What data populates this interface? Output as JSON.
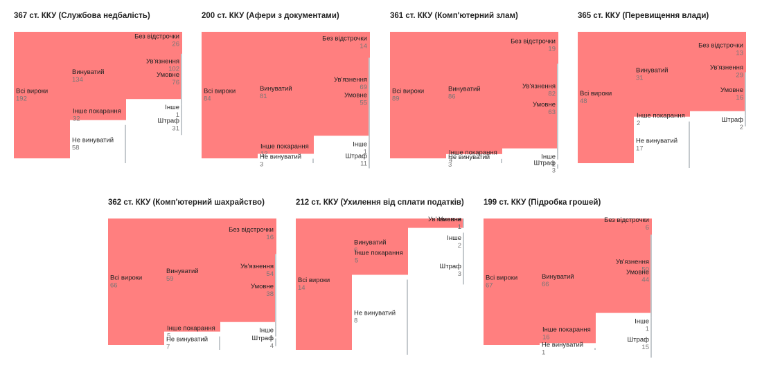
{
  "colors": {
    "red": "#ff7f7f",
    "grey": "#e2e6ea",
    "node_grey": "#c4c9cd",
    "link_red": "#ff7f7f"
  },
  "chart_data": [
    {
      "type": "sankey",
      "title": "367 ст. ККУ (Службова недбалість)",
      "nodes": [
        {
          "id": "all",
          "label": "Всі вироки",
          "value": 192
        },
        {
          "id": "guilty",
          "label": "Винуватий",
          "value": 134
        },
        {
          "id": "notguilty",
          "label": "Не винуватий",
          "value": 58
        },
        {
          "id": "prison",
          "label": "Ув'язнення",
          "value": 102
        },
        {
          "id": "otherpun",
          "label": "Інше покарання",
          "value": 32
        },
        {
          "id": "real",
          "label": "Без відстрочки",
          "value": 26
        },
        {
          "id": "cond",
          "label": "Умовне",
          "value": 76
        },
        {
          "id": "other",
          "label": "Інше",
          "value": 1
        },
        {
          "id": "fine",
          "label": "Штраф",
          "value": 31
        }
      ],
      "links": [
        {
          "source": "all",
          "target": "guilty",
          "value": 134
        },
        {
          "source": "all",
          "target": "notguilty",
          "value": 58
        },
        {
          "source": "guilty",
          "target": "prison",
          "value": 102
        },
        {
          "source": "guilty",
          "target": "otherpun",
          "value": 32
        },
        {
          "source": "prison",
          "target": "real",
          "value": 26
        },
        {
          "source": "prison",
          "target": "cond",
          "value": 76
        },
        {
          "source": "otherpun",
          "target": "other",
          "value": 1
        },
        {
          "source": "otherpun",
          "target": "fine",
          "value": 31
        }
      ]
    },
    {
      "type": "sankey",
      "title": "200 ст. ККУ (Афери з документами)",
      "nodes": [
        {
          "id": "all",
          "label": "Всі вироки",
          "value": 84
        },
        {
          "id": "guilty",
          "label": "Винуватий",
          "value": 81
        },
        {
          "id": "notguilty",
          "label": "Не винуватий",
          "value": 3
        },
        {
          "id": "prison",
          "label": "Ув'язнення",
          "value": 69
        },
        {
          "id": "otherpun",
          "label": "Інше покарання",
          "value": 12
        },
        {
          "id": "real",
          "label": "Без відстрочки",
          "value": 14
        },
        {
          "id": "cond",
          "label": "Умовне",
          "value": 55
        },
        {
          "id": "other",
          "label": "Інше",
          "value": 1
        },
        {
          "id": "fine",
          "label": "Штраф",
          "value": 11
        }
      ],
      "links": [
        {
          "source": "all",
          "target": "guilty",
          "value": 81
        },
        {
          "source": "all",
          "target": "notguilty",
          "value": 3
        },
        {
          "source": "guilty",
          "target": "prison",
          "value": 69
        },
        {
          "source": "guilty",
          "target": "otherpun",
          "value": 12
        },
        {
          "source": "prison",
          "target": "real",
          "value": 14
        },
        {
          "source": "prison",
          "target": "cond",
          "value": 55
        },
        {
          "source": "otherpun",
          "target": "other",
          "value": 1
        },
        {
          "source": "otherpun",
          "target": "fine",
          "value": 11
        }
      ]
    },
    {
      "type": "sankey",
      "title": "361 ст. ККУ (Комп'ютерний злам)",
      "nodes": [
        {
          "id": "all",
          "label": "Всі вироки",
          "value": 89
        },
        {
          "id": "guilty",
          "label": "Винуватий",
          "value": 86
        },
        {
          "id": "notguilty",
          "label": "Не винуватий",
          "value": 3
        },
        {
          "id": "prison",
          "label": "Ув'язнення",
          "value": 82
        },
        {
          "id": "otherpun",
          "label": "Інше покарання",
          "value": 4
        },
        {
          "id": "real",
          "label": "Без відстрочки",
          "value": 19
        },
        {
          "id": "cond",
          "label": "Умовне",
          "value": 63
        },
        {
          "id": "other",
          "label": "Інше",
          "value": 1
        },
        {
          "id": "fine",
          "label": "Штраф",
          "value": 3
        }
      ],
      "links": [
        {
          "source": "all",
          "target": "guilty",
          "value": 86
        },
        {
          "source": "all",
          "target": "notguilty",
          "value": 3
        },
        {
          "source": "guilty",
          "target": "prison",
          "value": 82
        },
        {
          "source": "guilty",
          "target": "otherpun",
          "value": 4
        },
        {
          "source": "prison",
          "target": "real",
          "value": 19
        },
        {
          "source": "prison",
          "target": "cond",
          "value": 63
        },
        {
          "source": "otherpun",
          "target": "other",
          "value": 1
        },
        {
          "source": "otherpun",
          "target": "fine",
          "value": 3
        }
      ]
    },
    {
      "type": "sankey",
      "title": "365 ст. ККУ (Перевищення влади)",
      "nodes": [
        {
          "id": "all",
          "label": "Всі вироки",
          "value": 48
        },
        {
          "id": "guilty",
          "label": "Винуватий",
          "value": 31
        },
        {
          "id": "notguilty",
          "label": "Не винуватий",
          "value": 17
        },
        {
          "id": "prison",
          "label": "Ув'язнення",
          "value": 29
        },
        {
          "id": "otherpun",
          "label": "Інше покарання",
          "value": 2
        },
        {
          "id": "real",
          "label": "Без відстрочки",
          "value": 13
        },
        {
          "id": "cond",
          "label": "Умовне",
          "value": 16
        },
        {
          "id": "fine",
          "label": "Штраф",
          "value": 2
        }
      ],
      "links": [
        {
          "source": "all",
          "target": "guilty",
          "value": 31
        },
        {
          "source": "all",
          "target": "notguilty",
          "value": 17
        },
        {
          "source": "guilty",
          "target": "prison",
          "value": 29
        },
        {
          "source": "guilty",
          "target": "otherpun",
          "value": 2
        },
        {
          "source": "prison",
          "target": "real",
          "value": 13
        },
        {
          "source": "prison",
          "target": "cond",
          "value": 16
        },
        {
          "source": "otherpun",
          "target": "fine",
          "value": 2
        }
      ]
    },
    {
      "type": "sankey",
      "title": "362 ст. ККУ (Комп'ютерний шахрайство)",
      "nodes": [
        {
          "id": "all",
          "label": "Всі вироки",
          "value": 66
        },
        {
          "id": "guilty",
          "label": "Винуватий",
          "value": 59
        },
        {
          "id": "notguilty",
          "label": "Не винуватий",
          "value": 7
        },
        {
          "id": "prison",
          "label": "Ув'язнення",
          "value": 54
        },
        {
          "id": "otherpun",
          "label": "Інше покарання",
          "value": 5
        },
        {
          "id": "real",
          "label": "Без відстрочки",
          "value": 16
        },
        {
          "id": "cond",
          "label": "Умовне",
          "value": 38
        },
        {
          "id": "other",
          "label": "Інше",
          "value": 1
        },
        {
          "id": "fine",
          "label": "Штраф",
          "value": 4
        }
      ],
      "links": [
        {
          "source": "all",
          "target": "guilty",
          "value": 59
        },
        {
          "source": "all",
          "target": "notguilty",
          "value": 7
        },
        {
          "source": "guilty",
          "target": "prison",
          "value": 54
        },
        {
          "source": "guilty",
          "target": "otherpun",
          "value": 5
        },
        {
          "source": "prison",
          "target": "real",
          "value": 16
        },
        {
          "source": "prison",
          "target": "cond",
          "value": 38
        },
        {
          "source": "otherpun",
          "target": "other",
          "value": 1
        },
        {
          "source": "otherpun",
          "target": "fine",
          "value": 4
        }
      ]
    },
    {
      "type": "sankey",
      "title": "212 ст. ККУ (Ухилення від сплати податків)",
      "nodes": [
        {
          "id": "all",
          "label": "Всі вироки",
          "value": 14
        },
        {
          "id": "guilty",
          "label": "Винуватий",
          "value": 6
        },
        {
          "id": "notguilty",
          "label": "Не винуватий",
          "value": 8
        },
        {
          "id": "prison",
          "label": "Ув'язнення",
          "value": 1
        },
        {
          "id": "otherpun",
          "label": "Інше покарання",
          "value": 5
        },
        {
          "id": "cond",
          "label": "Умовне",
          "value": 1
        },
        {
          "id": "other",
          "label": "Інше",
          "value": 2
        },
        {
          "id": "fine",
          "label": "Штраф",
          "value": 3
        }
      ],
      "links": [
        {
          "source": "all",
          "target": "guilty",
          "value": 6
        },
        {
          "source": "all",
          "target": "notguilty",
          "value": 8
        },
        {
          "source": "guilty",
          "target": "prison",
          "value": 1
        },
        {
          "source": "guilty",
          "target": "otherpun",
          "value": 5
        },
        {
          "source": "prison",
          "target": "cond",
          "value": 1
        },
        {
          "source": "otherpun",
          "target": "other",
          "value": 2
        },
        {
          "source": "otherpun",
          "target": "fine",
          "value": 3
        }
      ]
    },
    {
      "type": "sankey",
      "title": "199 ст. ККУ (Підробка грошей)",
      "nodes": [
        {
          "id": "all",
          "label": "Всі вироки",
          "value": 67
        },
        {
          "id": "guilty",
          "label": "Винуватий",
          "value": 66
        },
        {
          "id": "notguilty",
          "label": "Не винуватий",
          "value": 1
        },
        {
          "id": "prison",
          "label": "Ув'язнення",
          "value": 50
        },
        {
          "id": "otherpun",
          "label": "Інше покарання",
          "value": 16
        },
        {
          "id": "real",
          "label": "Без відстрочки",
          "value": 6
        },
        {
          "id": "cond",
          "label": "Умовне",
          "value": 44
        },
        {
          "id": "other",
          "label": "Інше",
          "value": 1
        },
        {
          "id": "fine",
          "label": "Штраф",
          "value": 15
        }
      ],
      "links": [
        {
          "source": "all",
          "target": "guilty",
          "value": 66
        },
        {
          "source": "all",
          "target": "notguilty",
          "value": 1
        },
        {
          "source": "guilty",
          "target": "prison",
          "value": 50
        },
        {
          "source": "guilty",
          "target": "otherpun",
          "value": 16
        },
        {
          "source": "prison",
          "target": "real",
          "value": 6
        },
        {
          "source": "prison",
          "target": "cond",
          "value": 44
        },
        {
          "source": "otherpun",
          "target": "other",
          "value": 1
        },
        {
          "source": "otherpun",
          "target": "fine",
          "value": 15
        }
      ]
    }
  ]
}
